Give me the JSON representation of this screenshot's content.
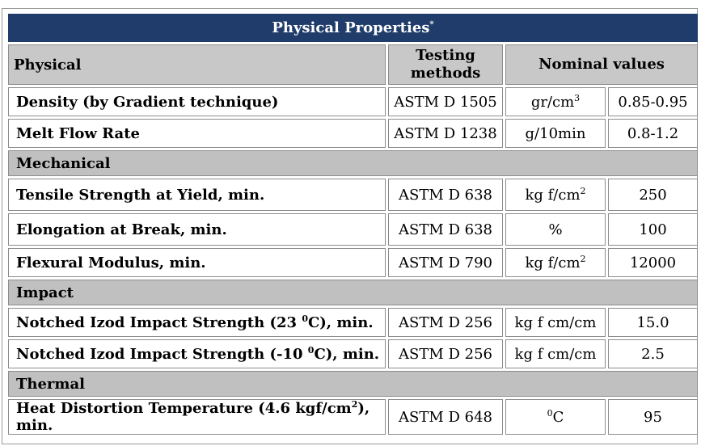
{
  "title": "Physical Properties",
  "title_mark": "*",
  "header": {
    "physical": "Physical",
    "testing_line1": "Testing",
    "testing_line2": "methods",
    "nominal": "Nominal values"
  },
  "rows": {
    "density": {
      "property": "Density (by Gradient technique)",
      "method": "ASTM D 1505",
      "unit_base": "gr/cm",
      "unit_sup": "3",
      "value": "0.85-0.95"
    },
    "melt": {
      "property": "Melt Flow Rate",
      "method": "ASTM D 1238",
      "unit": "g/10min",
      "value": "0.8-1.2"
    },
    "tensile": {
      "property": "Tensile Strength at Yield, min.",
      "method": "ASTM D 638",
      "unit_base": "kg f/cm",
      "unit_sup": "2",
      "value": "250"
    },
    "elongation": {
      "property": "Elongation at Break, min.",
      "method": "ASTM D 638",
      "unit": "%",
      "value": "100"
    },
    "flexural": {
      "property": "Flexural Modulus, min.",
      "method": "ASTM D 790",
      "unit_base": "kg f/cm",
      "unit_sup": "2",
      "value": "12000"
    },
    "izod23": {
      "property_before": "Notched Izod Impact Strength (23 ",
      "property_sup": "0",
      "property_after": "C), min.",
      "method": "ASTM D 256",
      "unit": "kg f cm/cm",
      "value": "15.0"
    },
    "izod10": {
      "property_before": "Notched Izod Impact Strength (-10 ",
      "property_sup": "0",
      "property_after": "C), min.",
      "method": "ASTM D 256",
      "unit": "kg f cm/cm",
      "value": "2.5"
    },
    "hdt": {
      "property_before": "Heat Distortion Temperature (4.6 kgf/cm",
      "property_sup": "2",
      "property_after": "), min.",
      "method": "ASTM D 648",
      "unit_sup": "0",
      "unit_base": "C",
      "value": "95"
    }
  },
  "sections": {
    "mechanical": "Mechanical",
    "impact": "Impact",
    "thermal": "Thermal"
  },
  "colors": {
    "title_bg": "#1f3c6b",
    "header_bg": "#c8c8c8",
    "section_bg": "#c0c0c0"
  }
}
